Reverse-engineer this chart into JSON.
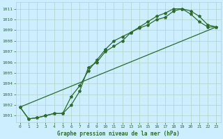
{
  "title": "Graphe pression niveau de la mer (hPa)",
  "bg_color": "#cceeff",
  "line_color": "#2d6a2d",
  "grid_color": "#b0d4c8",
  "xlim": [
    -0.5,
    23.5
  ],
  "ylim": [
    1000.4,
    1011.6
  ],
  "yticks": [
    1001,
    1002,
    1003,
    1004,
    1005,
    1006,
    1007,
    1008,
    1009,
    1010,
    1011
  ],
  "xticks": [
    0,
    1,
    2,
    3,
    4,
    5,
    6,
    7,
    8,
    9,
    10,
    11,
    12,
    13,
    14,
    15,
    16,
    17,
    18,
    19,
    20,
    21,
    22,
    23
  ],
  "series1_x": [
    0,
    1,
    2,
    3,
    4,
    5,
    6,
    7,
    8,
    9,
    10,
    11,
    12,
    13,
    14,
    15,
    16,
    17,
    18,
    19,
    20,
    21,
    22,
    23
  ],
  "series1_y": [
    1001.8,
    1000.7,
    1000.8,
    1001.0,
    1001.2,
    1001.2,
    1002.0,
    1003.3,
    1005.5,
    1006.0,
    1007.0,
    1007.5,
    1008.0,
    1008.8,
    1009.2,
    1009.5,
    1010.0,
    1010.2,
    1010.8,
    1011.0,
    1010.8,
    1010.3,
    1009.5,
    1009.3
  ],
  "series2_x": [
    0,
    1,
    2,
    3,
    4,
    5,
    6,
    7,
    8,
    9,
    10,
    11,
    12,
    13,
    14,
    15,
    16,
    17,
    18,
    19,
    20,
    21,
    22,
    23
  ],
  "series2_y": [
    1001.8,
    1000.7,
    1000.8,
    1001.0,
    1001.2,
    1001.2,
    1002.8,
    1003.8,
    1005.2,
    1006.2,
    1007.2,
    1008.0,
    1008.4,
    1008.8,
    1009.3,
    1009.8,
    1010.3,
    1010.6,
    1011.0,
    1011.0,
    1010.5,
    1009.8,
    1009.3,
    1009.3
  ],
  "series3_x": [
    0,
    23
  ],
  "series3_y": [
    1001.8,
    1009.3
  ]
}
